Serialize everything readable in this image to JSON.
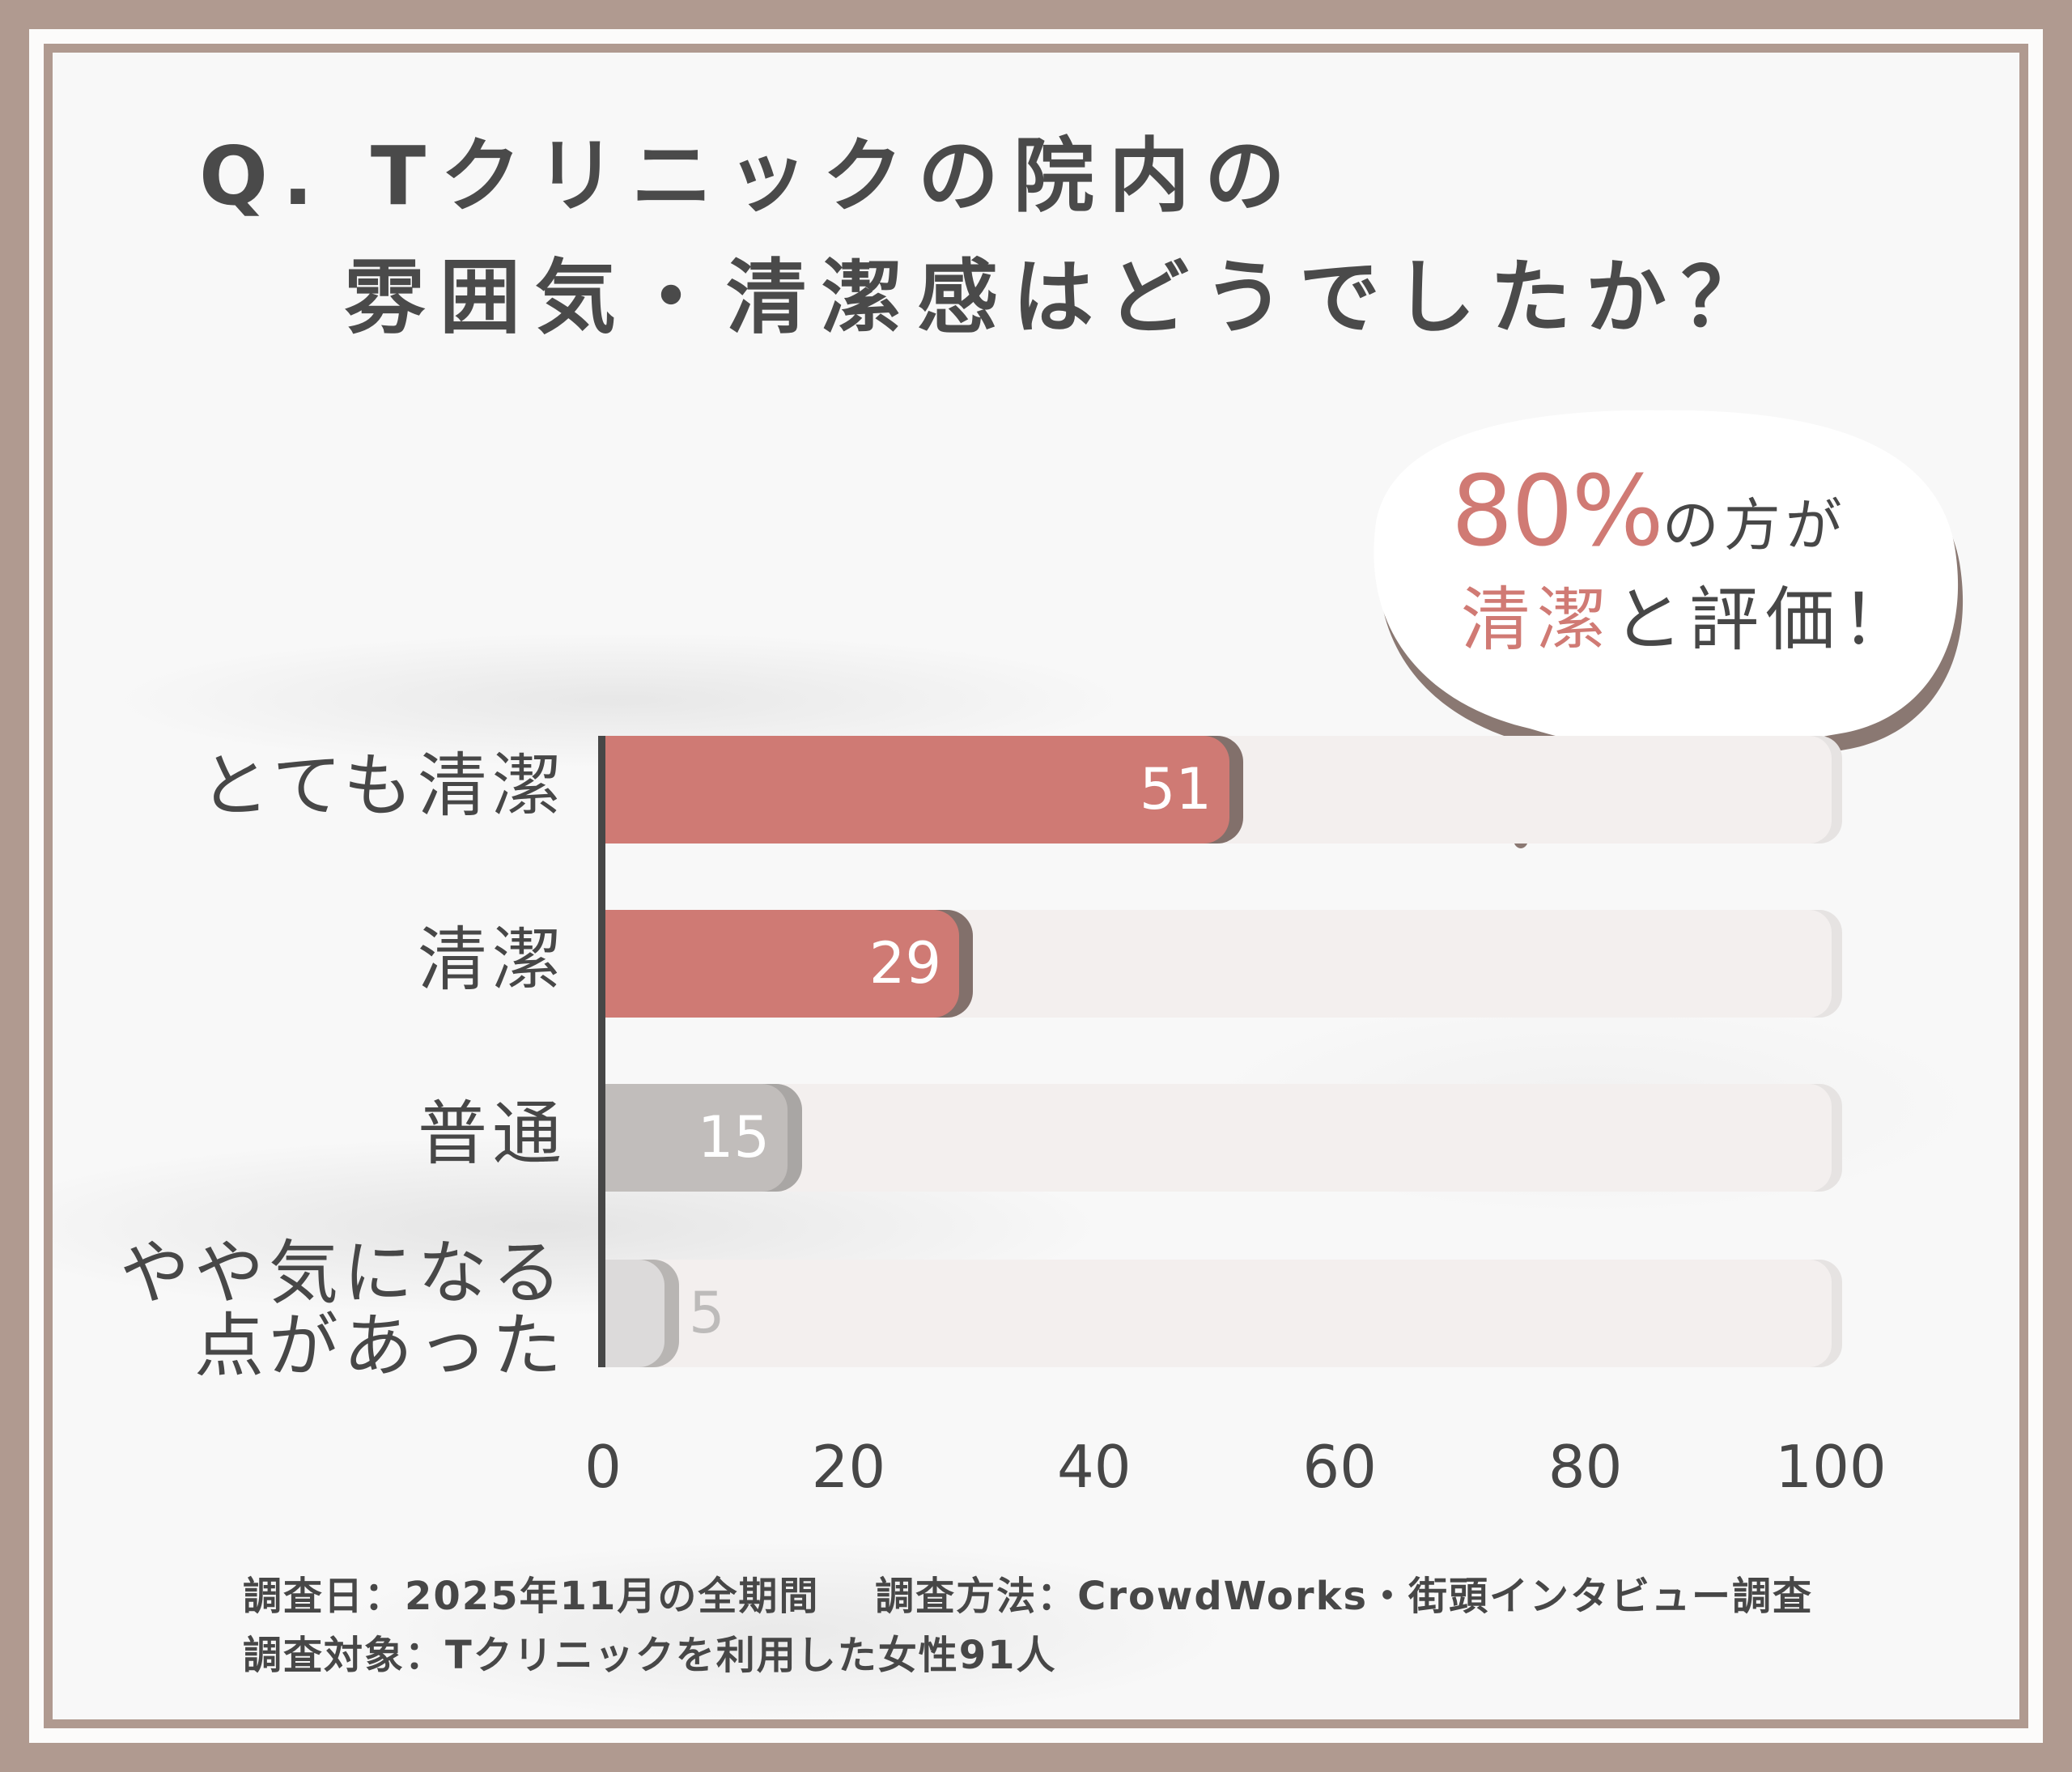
{
  "title": {
    "line1": "Q. Tクリニックの院内の",
    "line2": "雰囲気・清潔感はどうでしたか？"
  },
  "callout": {
    "percent": "80%",
    "line1_suffix": "の方が",
    "line2_accent": "清潔",
    "line2_suffix": "と評価！"
  },
  "footer": {
    "line1": "調査日：2025年11月の全期間　 調査方法：CrowdWorks・街頭インタビュー調査",
    "line2": "調査対象：Tクリニックを利用した女性91人"
  },
  "colors": {
    "frame": "#B09A90",
    "accent": "#CF7A74",
    "accent_shadow": "#82706B",
    "neutral": "#C1BDBB",
    "light": "#DCDADA",
    "text": "#474747",
    "track": "#F3EFEE"
  },
  "chart_data": {
    "type": "bar",
    "orientation": "horizontal",
    "title": "Q. Tクリニックの院内の雰囲気・清潔感はどうでしたか？",
    "categories": [
      "とても清潔",
      "清潔",
      "普通",
      "やや気になる点があった"
    ],
    "category_display": [
      "とても清潔",
      "清潔",
      "普通",
      "やや気になる\n点があった"
    ],
    "values": [
      51,
      29,
      15,
      5
    ],
    "value_labels": [
      "51",
      "29",
      "15",
      "5"
    ],
    "bar_styles": [
      "red",
      "red",
      "gray",
      "light"
    ],
    "xlabel": "",
    "ylabel": "",
    "xlim": [
      0,
      100
    ],
    "xticks": [
      "0",
      "20",
      "40",
      "60",
      "80",
      "100"
    ],
    "grid": false,
    "legend": null,
    "annotation": "80%の方が清潔と評価！",
    "sample_size": 91
  }
}
